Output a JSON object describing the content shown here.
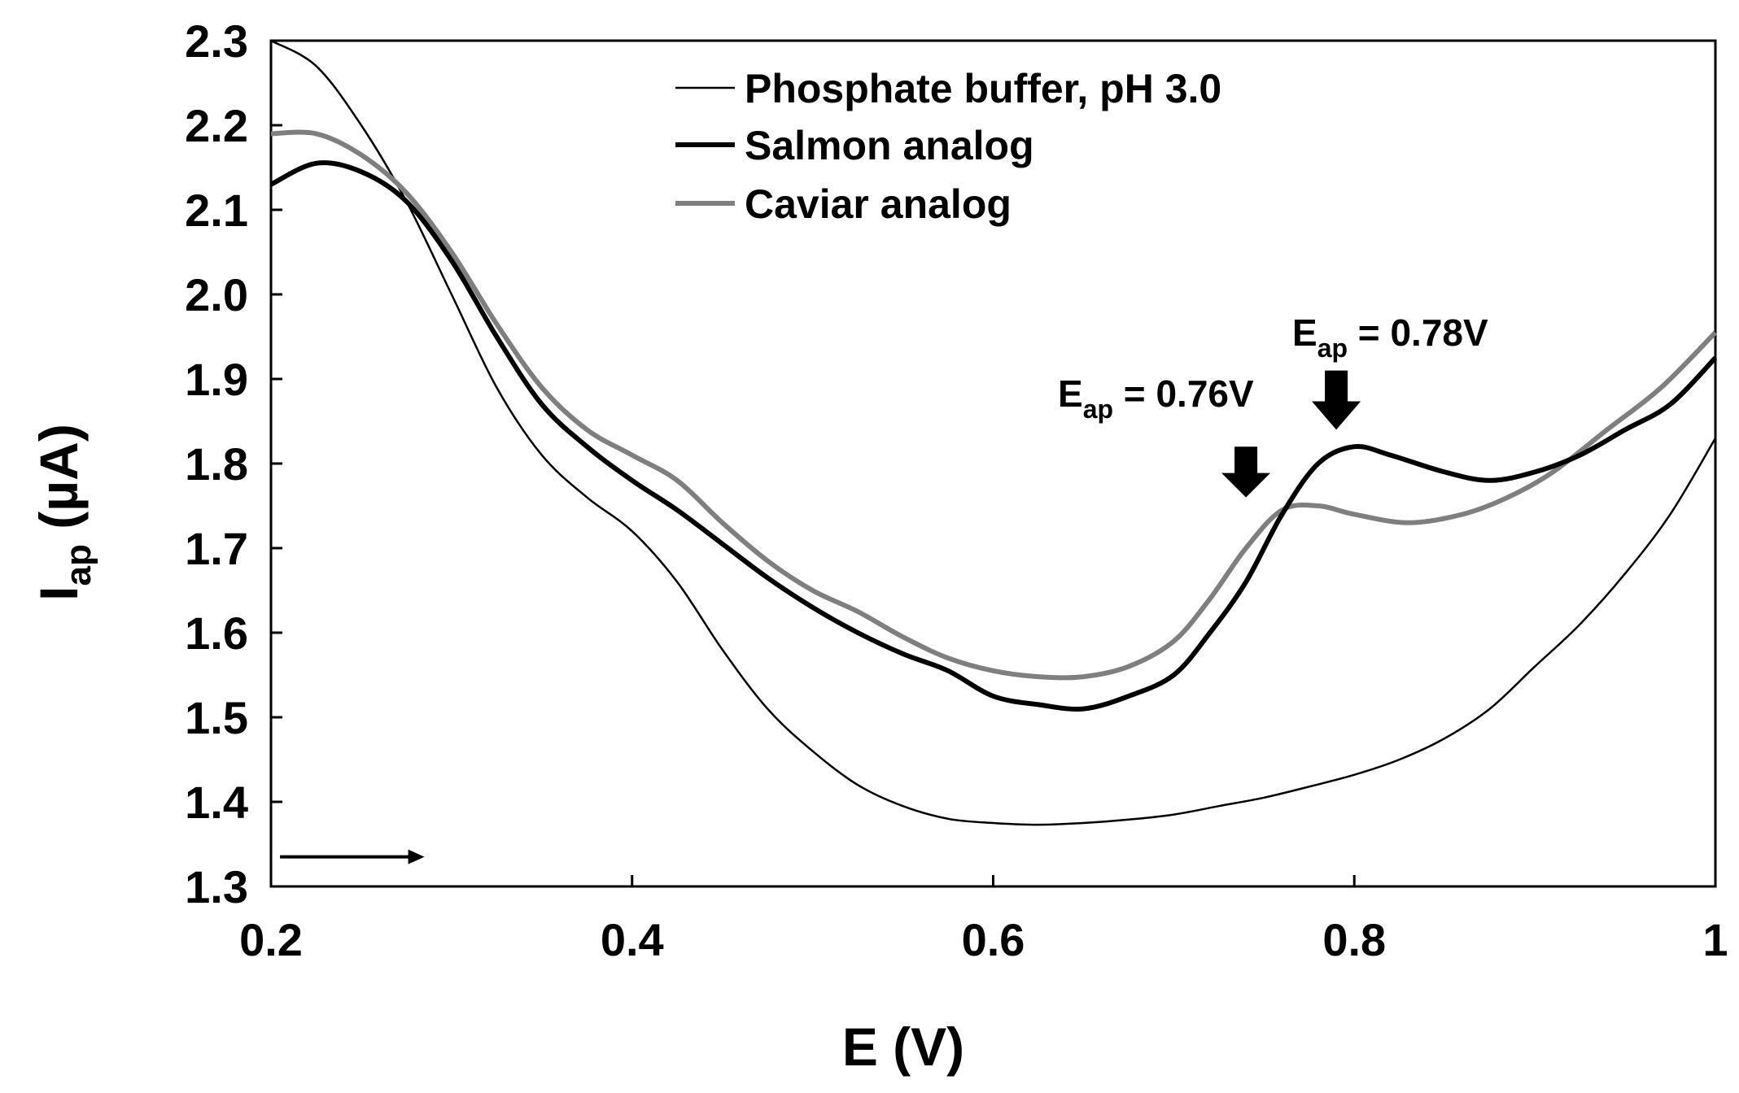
{
  "chart_data": {
    "type": "line",
    "xlabel": "E (V)",
    "ylabel_main": "I",
    "ylabel_sub": "ap",
    "ylabel_unit": " (µA)",
    "xlim": [
      0.2,
      1.0
    ],
    "ylim": [
      1.3,
      2.3
    ],
    "x_ticks": [
      {
        "value": 0.2,
        "label": "0.2"
      },
      {
        "value": 0.4,
        "label": "0.4"
      },
      {
        "value": 0.6,
        "label": "0.6"
      },
      {
        "value": 0.8,
        "label": "0.8"
      },
      {
        "value": 1.0,
        "label": "1"
      }
    ],
    "y_ticks": [
      {
        "value": 1.3,
        "label": "1.3"
      },
      {
        "value": 1.4,
        "label": "1.4"
      },
      {
        "value": 1.5,
        "label": "1.5"
      },
      {
        "value": 1.6,
        "label": "1.6"
      },
      {
        "value": 1.7,
        "label": "1.7"
      },
      {
        "value": 1.8,
        "label": "1.8"
      },
      {
        "value": 1.9,
        "label": "1.9"
      },
      {
        "value": 2.0,
        "label": "2.0"
      },
      {
        "value": 2.1,
        "label": "2.1"
      },
      {
        "value": 2.2,
        "label": "2.2"
      },
      {
        "value": 2.3,
        "label": "2.3"
      }
    ],
    "grid": false,
    "legend_position": "top-center",
    "series": [
      {
        "name": "Phosphate buffer, pH 3.0",
        "color": "#000000",
        "style": "thin",
        "x": [
          0.2,
          0.225,
          0.25,
          0.275,
          0.3,
          0.325,
          0.35,
          0.375,
          0.4,
          0.425,
          0.45,
          0.475,
          0.5,
          0.525,
          0.55,
          0.575,
          0.6,
          0.625,
          0.65,
          0.675,
          0.7,
          0.725,
          0.75,
          0.775,
          0.8,
          0.825,
          0.85,
          0.875,
          0.9,
          0.925,
          0.95,
          0.975,
          1.0
        ],
        "y": [
          2.3,
          2.27,
          2.2,
          2.11,
          2.0,
          1.89,
          1.81,
          1.76,
          1.72,
          1.66,
          1.58,
          1.51,
          1.46,
          1.42,
          1.395,
          1.38,
          1.375,
          1.373,
          1.375,
          1.379,
          1.385,
          1.395,
          1.405,
          1.418,
          1.432,
          1.45,
          1.475,
          1.51,
          1.56,
          1.61,
          1.67,
          1.74,
          1.83
        ]
      },
      {
        "name": "Salmon analog",
        "color": "#000000",
        "style": "thick",
        "x": [
          0.2,
          0.225,
          0.25,
          0.275,
          0.3,
          0.325,
          0.35,
          0.375,
          0.4,
          0.425,
          0.45,
          0.475,
          0.5,
          0.525,
          0.55,
          0.575,
          0.6,
          0.625,
          0.65,
          0.675,
          0.7,
          0.72,
          0.74,
          0.76,
          0.78,
          0.8,
          0.82,
          0.85,
          0.875,
          0.9,
          0.925,
          0.95,
          0.975,
          1.0
        ],
        "y": [
          2.13,
          2.155,
          2.145,
          2.11,
          2.04,
          1.95,
          1.87,
          1.82,
          1.78,
          1.745,
          1.705,
          1.665,
          1.63,
          1.6,
          1.575,
          1.555,
          1.525,
          1.515,
          1.51,
          1.525,
          1.55,
          1.6,
          1.66,
          1.74,
          1.8,
          1.82,
          1.81,
          1.79,
          1.78,
          1.79,
          1.81,
          1.84,
          1.87,
          1.925
        ]
      },
      {
        "name": "Caviar analog",
        "color": "#7f7f7f",
        "style": "thick",
        "x": [
          0.2,
          0.225,
          0.25,
          0.275,
          0.3,
          0.325,
          0.35,
          0.375,
          0.4,
          0.425,
          0.45,
          0.475,
          0.5,
          0.525,
          0.55,
          0.575,
          0.6,
          0.625,
          0.65,
          0.675,
          0.7,
          0.72,
          0.74,
          0.76,
          0.78,
          0.8,
          0.83,
          0.86,
          0.885,
          0.91,
          0.94,
          0.97,
          1.0
        ],
        "y": [
          2.19,
          2.19,
          2.165,
          2.12,
          2.05,
          1.965,
          1.89,
          1.84,
          1.81,
          1.78,
          1.73,
          1.685,
          1.65,
          1.625,
          1.595,
          1.57,
          1.555,
          1.548,
          1.548,
          1.56,
          1.59,
          1.64,
          1.7,
          1.745,
          1.75,
          1.74,
          1.73,
          1.74,
          1.76,
          1.79,
          1.84,
          1.89,
          1.955
        ]
      }
    ],
    "annotations": [
      {
        "main": "E",
        "sub": "ap",
        "rest": " = 0.76V",
        "arrow_x": 0.74,
        "arrow_y_top": 1.82,
        "arrow_y_bottom": 1.76
      },
      {
        "main": "E",
        "sub": "ap",
        "rest": " = 0.78V",
        "arrow_x": 0.79,
        "arrow_y_top": 1.91,
        "arrow_y_bottom": 1.84
      }
    ],
    "scan_direction_arrow": {
      "x_start": 0.205,
      "x_end": 0.285,
      "y": 1.335
    }
  }
}
